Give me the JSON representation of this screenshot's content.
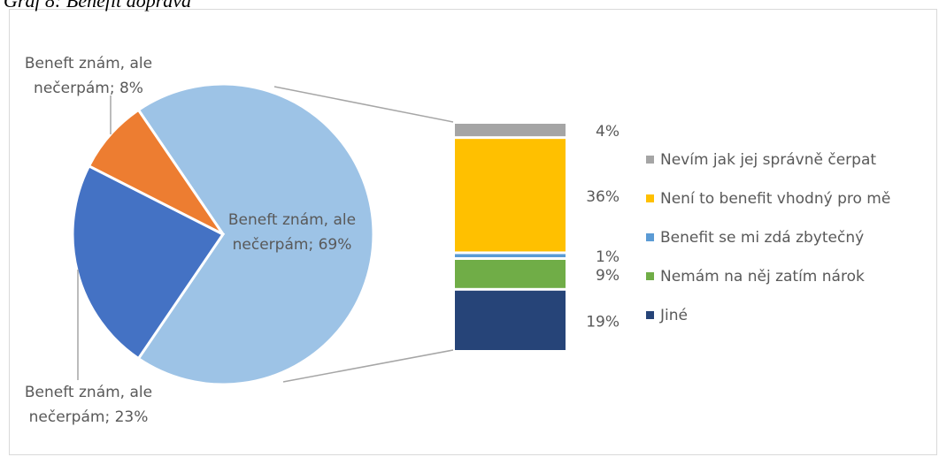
{
  "chart_data": {
    "type": "pie",
    "title": "Graf 8: Benefit doprava",
    "values": [
      69,
      23,
      8
    ],
    "value_labels": [
      "Beneft znám, ale nečerpám; 69%",
      "Beneft znám, ale nečerpám; 23%",
      "Beneft znám, ale nečerpám; 8%"
    ],
    "colors": [
      "#9dc3e6",
      "#4472c4",
      "#ed7d31"
    ],
    "breakdown": {
      "categories": [
        "Nevím jak jej správně čerpat",
        "Není to benefit vhodný pro mě",
        "Benefit se mi zdá zbytečný",
        "Nemám na něj zatím nárok",
        "Jiné"
      ],
      "values": [
        4,
        36,
        1,
        9,
        19
      ],
      "value_labels": [
        "4%",
        "36%",
        "1%",
        "9%",
        "19%"
      ],
      "colors": [
        "#a5a5a5",
        "#ffc000",
        "#5b9bd5",
        "#70ad47",
        "#264478"
      ]
    }
  }
}
